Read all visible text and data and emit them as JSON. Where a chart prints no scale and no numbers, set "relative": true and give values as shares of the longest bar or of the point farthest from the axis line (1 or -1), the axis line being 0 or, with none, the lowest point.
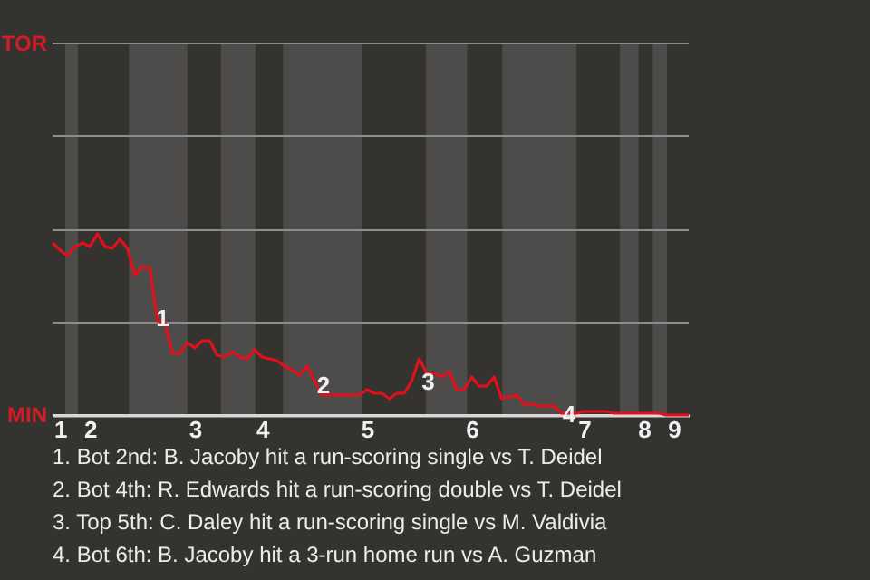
{
  "chart_data": {
    "type": "line",
    "relative": true,
    "categories": [
      null,
      "1",
      null,
      null,
      null,
      "2",
      null,
      null,
      null,
      null,
      null,
      null,
      null,
      null,
      null,
      null,
      null,
      null,
      null,
      "3",
      null,
      null,
      null,
      null,
      null,
      null,
      null,
      null,
      "4",
      null,
      null,
      null,
      null,
      null,
      null,
      null,
      null,
      null,
      null,
      null,
      null,
      null,
      "5",
      null,
      null,
      null,
      null,
      null,
      null,
      null,
      null,
      null,
      null,
      null,
      null,
      null,
      "6",
      null,
      null,
      null,
      null,
      null,
      null,
      null,
      null,
      null,
      null,
      null,
      null,
      null,
      null,
      "7",
      null,
      null,
      null,
      null,
      null,
      null,
      null,
      "8",
      null,
      null,
      null,
      "9",
      null,
      null
    ],
    "series": [
      {
        "color": "#e3101c",
        "values": [
          0.95,
          0.91,
          0.88,
          0.93,
          0.95,
          0.93,
          1,
          0.93,
          0.92,
          0.97,
          0.92,
          0.77,
          0.82,
          0.81,
          0.52,
          0.51,
          0.34,
          0.34,
          0.4,
          0.37,
          0.41,
          0.41,
          0.33,
          0.32,
          0.35,
          0.32,
          0.31,
          0.36,
          0.32,
          0.31,
          0.3,
          0.27,
          0.25,
          0.22,
          0.27,
          0.19,
          0.11,
          0.11,
          0.11,
          0.11,
          0.11,
          0.11,
          0.14,
          0.12,
          0.12,
          0.09,
          0.12,
          0.12,
          0.19,
          0.31,
          0.23,
          0.23,
          0.21,
          0.24,
          0.14,
          0.14,
          0.21,
          0.16,
          0.16,
          0.21,
          0.09,
          0.1,
          0.11,
          0.06,
          0.06,
          0.05,
          0.05,
          0.05,
          0.01,
          0.01,
          0.01,
          0.02,
          0.02,
          0.02,
          0.02,
          0.01,
          0.01,
          0.01,
          0.01,
          0.01,
          0.01,
          0.01,
          0,
          0,
          0,
          0
        ],
        "line_style": "solid"
      }
    ],
    "ref_lines": [
      {
        "axis": "y",
        "value": 0,
        "label": "MIN",
        "color": "#d8d8d8"
      },
      {
        "axis": "y",
        "value": 0.51,
        "color": "#8c8c8c"
      },
      {
        "axis": "y",
        "value": 1.02,
        "color": "#8c8c8c"
      },
      {
        "axis": "y",
        "value": 1.54,
        "color": "#8c8c8c"
      },
      {
        "axis": "y",
        "value": 2.05,
        "label": "TOR",
        "color": "#8c8c8c"
      }
    ],
    "annotations": [
      {
        "text": "1",
        "y": 0.53
      },
      {
        "text": "2",
        "y": 0.16
      },
      {
        "text": "3",
        "y": 0.18
      },
      {
        "text": "4",
        "y": 0
      },
      "1. Bot 2nd: B. Jacoby hit a run-scoring single vs T. Deidel",
      "2. Bot 4th: R. Edwards hit a run-scoring double vs T. Deidel",
      "3. Top 5th: C. Daley hit a run-scoring single vs M. Valdivia",
      "4. Bot 6th: B. Jacoby hit a 3-run home run vs A. Guzman"
    ]
  }
}
